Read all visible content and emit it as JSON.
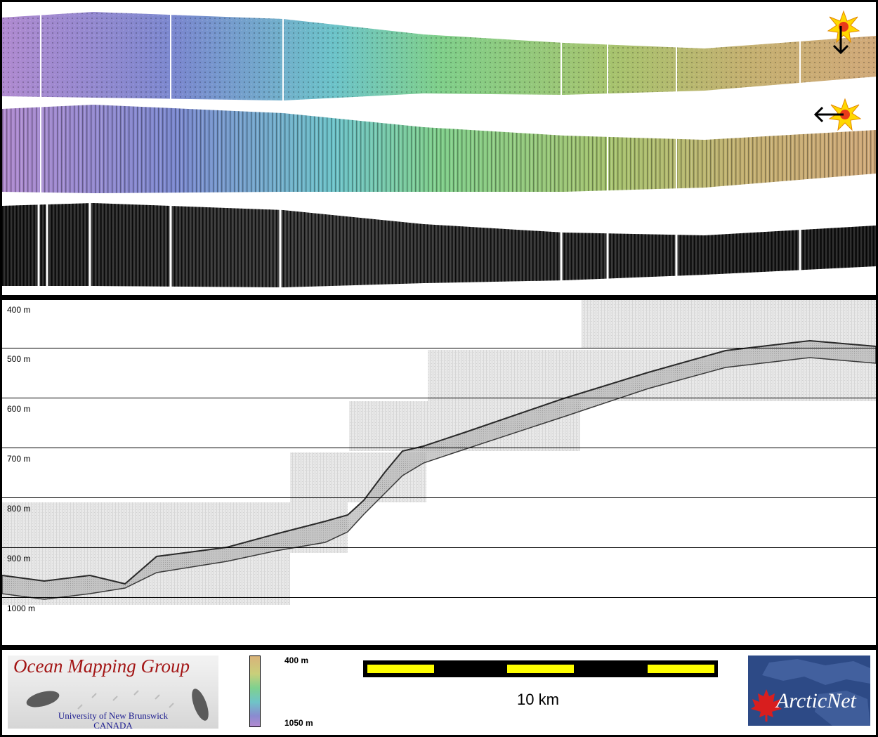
{
  "profile": {
    "depth_labels": [
      "400 m",
      "500 m",
      "600 m",
      "700 m",
      "800 m",
      "900 m",
      "1000 m"
    ]
  },
  "footer": {
    "omg_title": "Ocean Mapping Group",
    "omg_subtitle_1": "University of New Brunswick",
    "omg_subtitle_2": "CANADA",
    "colorbar_top": "400 m",
    "colorbar_bottom": "1050 m",
    "scale_label": "10 km",
    "arcticnet_label": "ArcticNet"
  },
  "colors": {
    "accent_red": "#a31515",
    "scale_yellow": "#ffff00",
    "sun_yellow": "#ffd800"
  },
  "icons": [
    "sun-illumination-icon",
    "arrow-down-icon",
    "arrow-left-icon",
    "maple-leaf-icon"
  ]
}
